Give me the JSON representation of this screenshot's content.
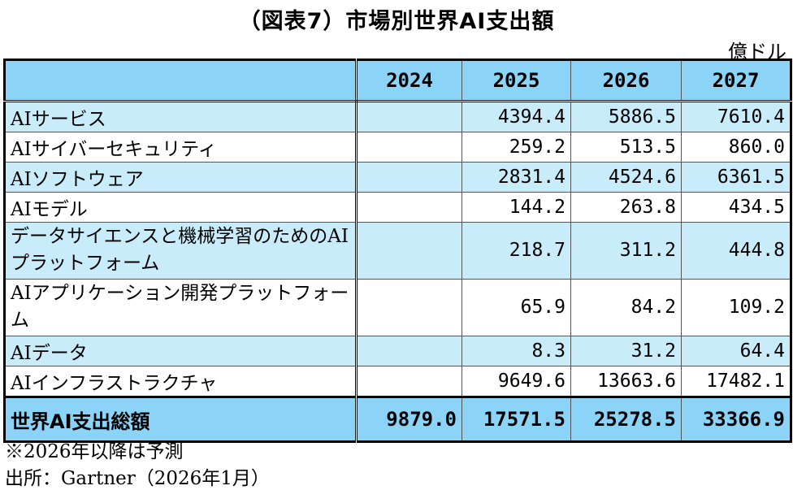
{
  "title": "（図表7）市場別世界AI支出額",
  "unit": "億ドル",
  "table": {
    "years": [
      "2024",
      "2025",
      "2026",
      "2027"
    ],
    "rows": [
      {
        "label": "AIサービス",
        "values": [
          "",
          "4394.4",
          "5886.5",
          "7610.4"
        ]
      },
      {
        "label": "AIサイバーセキュリティ",
        "values": [
          "",
          "259.2",
          "513.5",
          "860.0"
        ]
      },
      {
        "label": "AIソフトウェア",
        "values": [
          "",
          "2831.4",
          "4524.6",
          "6361.5"
        ]
      },
      {
        "label": "AIモデル",
        "values": [
          "",
          "144.2",
          "263.8",
          "434.5"
        ]
      },
      {
        "label": "データサイエンスと機械学習のためのAIプラットフォーム",
        "values": [
          "",
          "218.7",
          "311.2",
          "444.8"
        ]
      },
      {
        "label": "AIアプリケーション開発プラットフォーム",
        "values": [
          "",
          "65.9",
          "84.2",
          "109.2"
        ]
      },
      {
        "label": "AIデータ",
        "values": [
          "",
          "8.3",
          "31.2",
          "64.4"
        ]
      },
      {
        "label": "AIインフラストラクチャ",
        "values": [
          "",
          "9649.6",
          "13663.6",
          "17482.1"
        ]
      }
    ],
    "total": {
      "label": "世界AI支出総額",
      "values": [
        "9879.0",
        "17571.5",
        "25278.5",
        "33366.9"
      ]
    }
  },
  "notes": {
    "forecast": "※2026年以降は予測",
    "source": "出所：Gartner（2026年1月）"
  }
}
